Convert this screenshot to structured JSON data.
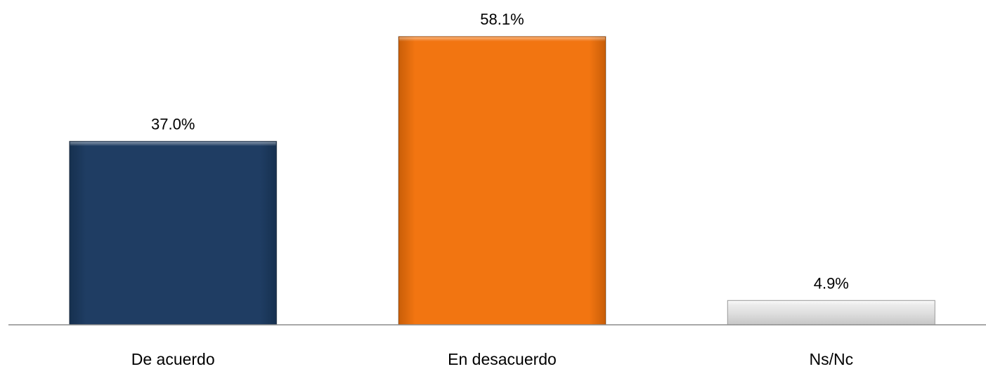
{
  "chart_data": {
    "type": "bar",
    "title": "",
    "xlabel": "",
    "ylabel": "",
    "categories": [
      "De acuerdo",
      "En desacuerdo",
      "Ns/Nc"
    ],
    "values": [
      37.0,
      58.1,
      4.9
    ],
    "value_labels": [
      "37.0%",
      "58.1%",
      "4.9%"
    ],
    "colors": [
      "#1F3D63",
      "#F27511",
      "#D9D9D9"
    ],
    "ylim": [
      0,
      58.1
    ],
    "grid": false,
    "legend": "none"
  }
}
